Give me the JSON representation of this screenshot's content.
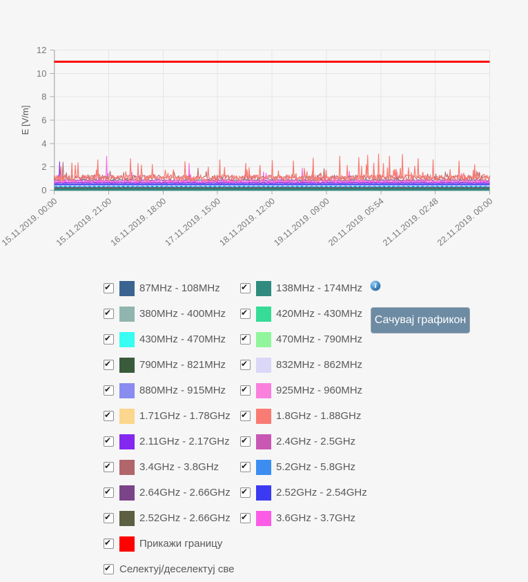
{
  "page": {
    "background": "#f6f6f6"
  },
  "chart_data": {
    "type": "line",
    "title": "",
    "xlabel": "",
    "ylabel": "E [V/m]",
    "ylim": [
      0,
      12
    ],
    "y_ticks": [
      0,
      2,
      4,
      6,
      8,
      10,
      12
    ],
    "grid": true,
    "x_tick_labels": [
      "15.11.2019. 00:00",
      "15.11.2019. 21:00",
      "16.11.2019. 18:00",
      "17.11.2019. 15:00",
      "18.11.2019. 12:00",
      "19.11.2019. 09:00",
      "20.11.2019. 05:54",
      "21.11.2019. 02:48",
      "22.11.2019. 00:00"
    ],
    "limit_line": {
      "label": "Прикажи границу",
      "value": 11,
      "color": "#fe0100",
      "width": 3
    },
    "series": [
      {
        "name": "380MHz - 400MHz",
        "color": "#90b4ae",
        "mode": "flat",
        "value": 0.04,
        "width": 1
      },
      {
        "name": "1.71GHz - 1.78GHz",
        "color": "#fbd68c",
        "mode": "flat",
        "value": 0.03,
        "width": 1
      },
      {
        "name": "470MHz - 790MHz",
        "color": "#90f59c",
        "mode": "flat",
        "value": 0.06,
        "width": 1
      },
      {
        "name": "790MHz - 821MHz",
        "color": "#3a5a3c",
        "mode": "flat",
        "value": 0.085,
        "width": 1.5
      },
      {
        "name": "420MHz - 430MHz",
        "color": "#37db97",
        "mode": "flat",
        "value": 0.11,
        "width": 1.5
      },
      {
        "name": "138MHz - 174MHz",
        "color": "#2f8b7e",
        "mode": "band",
        "value": 0.13,
        "width": 6
      },
      {
        "name": "2.52GHz - 2.66GHz",
        "color": "#5c5f41",
        "mode": "flat",
        "value": 0.17,
        "width": 1
      },
      {
        "name": "2.64GHz - 2.66GHz",
        "color": "#7b4488",
        "mode": "flat",
        "value": 0.21,
        "width": 1
      },
      {
        "name": "430MHz - 470MHz",
        "color": "#37fdf2",
        "mode": "flat",
        "value": 0.3,
        "width": 1.5,
        "dash": "3,3"
      },
      {
        "name": "5.2GHz - 5.8GHz",
        "color": "#3b8ef0",
        "mode": "flat",
        "value": 0.34,
        "width": 1.5,
        "dash": "4,3"
      },
      {
        "name": "832MHz - 862MHz",
        "color": "#dbd7f8",
        "mode": "flat",
        "value": 0.41,
        "width": 1
      },
      {
        "name": "2.52GHz - 2.54GHz",
        "color": "#3a3af2",
        "mode": "flat",
        "value": 0.5,
        "width": 2.5
      },
      {
        "name": "880MHz - 915MHz",
        "color": "#8a8cf0",
        "mode": "flat",
        "value": 0.58,
        "width": 2
      },
      {
        "name": "2.4GHz - 2.5GHz",
        "color": "#c858b4",
        "mode": "noisy",
        "seed": 11,
        "base": 0.68,
        "amp": 0.08,
        "spike_prob": 0.01,
        "spike_amp": 0.35,
        "width": 1
      },
      {
        "name": "925MHz - 960MHz",
        "color": "#fa80de",
        "mode": "noisy",
        "seed": 7,
        "base": 0.72,
        "amp": 0.12,
        "spike_prob": 0.015,
        "spike_amp": 0.5,
        "width": 1
      },
      {
        "name": "2.11GHz - 2.17GHz",
        "color": "#8428f0",
        "mode": "noisy",
        "seed": 9,
        "base": 0.63,
        "amp": 0.05,
        "spike_prob": 0.004,
        "spike_amp": 0.2,
        "width": 1,
        "events": [
          {
            "x": 0.013,
            "v": 2.45
          }
        ]
      },
      {
        "name": "87MHz - 108MHz",
        "color": "#3c6491",
        "mode": "noisy",
        "seed": 3,
        "base": 0.85,
        "amp": 0.08,
        "spike_prob": 0.005,
        "spike_amp": 0.3,
        "width": 1
      },
      {
        "name": "3.6GHz - 3.7GHz",
        "color": "#fa5ce6",
        "mode": "noisy",
        "seed": 5,
        "base": 0.78,
        "amp": 0.15,
        "spike_prob": 0.03,
        "spike_amp": 0.8,
        "width": 1,
        "events": [
          {
            "x": 0.12,
            "v": 2.9
          },
          {
            "x": 0.31,
            "v": 2.3
          },
          {
            "x": 0.57,
            "v": 1.9
          }
        ]
      },
      {
        "name": "3.4GHz - 3.8GHz",
        "color": "#b0666a",
        "mode": "noisy",
        "seed": 13,
        "base": 1.08,
        "amp": 0.22,
        "spike_prob": 0.04,
        "spike_amp": 0.5,
        "width": 1,
        "events": [
          {
            "x": 0.02,
            "v": 2.4
          },
          {
            "x": 0.33,
            "v": 1.9
          },
          {
            "x": 0.62,
            "v": 1.85
          }
        ]
      },
      {
        "name": "1.8GHz - 1.88GHz",
        "color": "#f97c74",
        "mode": "noisy",
        "seed": 42,
        "base": 1.05,
        "amp": 0.28,
        "spike_prob": 0.1,
        "spike_amp": 1.1,
        "width": 1.2,
        "boosts": [
          {
            "from": 0.66,
            "to": 0.84,
            "spike_prob": 0.2,
            "spike_amp": 1.6
          }
        ],
        "events": [
          {
            "x": 0.055,
            "v": 2.35
          },
          {
            "x": 0.1,
            "v": 2.6
          },
          {
            "x": 0.175,
            "v": 2.7
          },
          {
            "x": 0.225,
            "v": 2.2
          },
          {
            "x": 0.3,
            "v": 2.45
          },
          {
            "x": 0.38,
            "v": 2.6
          },
          {
            "x": 0.44,
            "v": 2.3
          },
          {
            "x": 0.5,
            "v": 2.55
          },
          {
            "x": 0.55,
            "v": 2.5
          },
          {
            "x": 0.595,
            "v": 2.75
          },
          {
            "x": 0.655,
            "v": 2.9
          },
          {
            "x": 0.7,
            "v": 2.8
          },
          {
            "x": 0.72,
            "v": 3.0
          },
          {
            "x": 0.745,
            "v": 3.1
          },
          {
            "x": 0.77,
            "v": 2.9
          },
          {
            "x": 0.8,
            "v": 3.05
          },
          {
            "x": 0.835,
            "v": 2.7
          },
          {
            "x": 0.87,
            "v": 2.6
          },
          {
            "x": 0.93,
            "v": 2.5
          },
          {
            "x": 0.965,
            "v": 2.2
          }
        ]
      }
    ]
  },
  "legend": {
    "items": [
      {
        "label": "87MHz - 108MHz",
        "color": "#3c6491",
        "checked": true
      },
      {
        "label": "138MHz - 174MHz",
        "color": "#2f8b7e",
        "checked": true
      },
      {
        "label": "380MHz - 400MHz",
        "color": "#90b4ae",
        "checked": true
      },
      {
        "label": "420MHz - 430MHz",
        "color": "#37db97",
        "checked": true
      },
      {
        "label": "430MHz - 470MHz",
        "color": "#37fdf2",
        "checked": true
      },
      {
        "label": "470MHz - 790MHz",
        "color": "#90f59c",
        "checked": true
      },
      {
        "label": "790MHz - 821MHz",
        "color": "#3a5a3c",
        "checked": true
      },
      {
        "label": "832MHz - 862MHz",
        "color": "#dbd7f8",
        "checked": true
      },
      {
        "label": "880MHz - 915MHz",
        "color": "#8a8cf0",
        "checked": true
      },
      {
        "label": "925MHz - 960MHz",
        "color": "#fa80de",
        "checked": true
      },
      {
        "label": "1.71GHz - 1.78GHz",
        "color": "#fbd68c",
        "checked": true
      },
      {
        "label": "1.8GHz - 1.88GHz",
        "color": "#f97c74",
        "checked": true
      },
      {
        "label": "2.11GHz - 2.17GHz",
        "color": "#8428f0",
        "checked": true
      },
      {
        "label": "2.4GHz - 2.5GHz",
        "color": "#c858b4",
        "checked": true
      },
      {
        "label": "3.4GHz - 3.8GHz",
        "color": "#b0666a",
        "checked": true
      },
      {
        "label": "5.2GHz - 5.8GHz",
        "color": "#3b8ef0",
        "checked": true
      },
      {
        "label": "2.64GHz - 2.66GHz",
        "color": "#7b4488",
        "checked": true
      },
      {
        "label": "2.52GHz - 2.54GHz",
        "color": "#3a3af2",
        "checked": true
      },
      {
        "label": "2.52GHz - 2.66GHz",
        "color": "#5c5f41",
        "checked": true
      },
      {
        "label": "3.6GHz - 3.7GHz",
        "color": "#fa5ce6",
        "checked": true
      }
    ],
    "limit_item": {
      "label": "Прикажи границу",
      "color": "#fe0100",
      "checked": true
    },
    "select_all_item": {
      "label": "Селектуј/деселектуј све",
      "checked": true
    }
  },
  "actions": {
    "save_button_label": "Сачувај графикон",
    "info_icon_glyph": "i"
  }
}
